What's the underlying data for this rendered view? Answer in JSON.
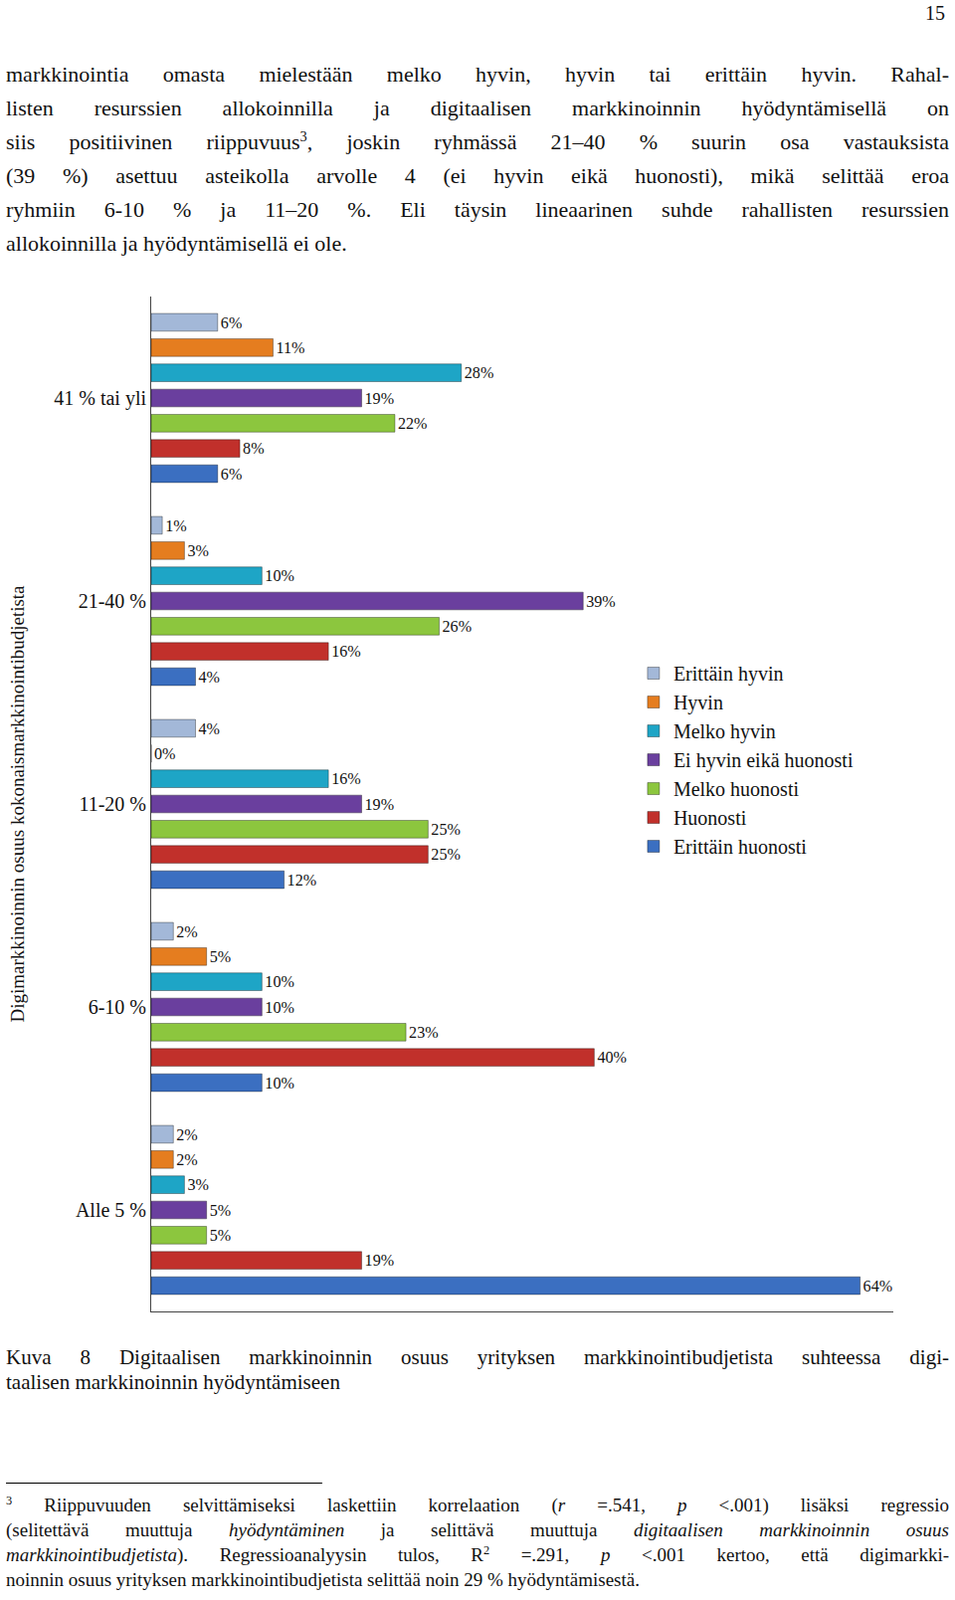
{
  "page": {
    "number": "15",
    "paragraph": [
      [
        "markkinointia omasta mielestään melko hyvin, hyvin tai erittäin hyvin. Rahal-"
      ],
      [
        "listen resurssien allokoinnilla ja digitaalisen markkinoinnin hyödyntämisellä on"
      ],
      [
        "siis positiivinen riippuvuus",
        {
          "sup": "3"
        },
        ", joskin ryhmässä 21–40 % suurin osa vastauksista"
      ],
      [
        "(39 %) asettuu asteikolla arvolle 4 (ei hyvin eikä huonosti), mikä selittää eroa"
      ],
      [
        "ryhmiin 6-10 % ja 11–20 %. Eli täysin lineaarinen suhde rahallisten resurssien"
      ],
      [
        "allokoinnilla ja hyödyntämisellä ei ole."
      ]
    ],
    "caption": [
      [
        "Kuva 8 Digitaalisen markkinoinnin osuus yrityksen markkinointibudjetista suhteessa digi-"
      ],
      [
        "taalisen markkinoinnin hyödyntämiseen"
      ]
    ],
    "footnote": [
      [
        {
          "sup": "3"
        },
        " Riippuvuuden selvittämiseksi laskettiin korrelaation (",
        {
          "i": "r"
        },
        " =.541, ",
        {
          "i": "p"
        },
        " <.001) lisäksi regressio"
      ],
      [
        "(selitettävä muuttuja ",
        {
          "i": "hyödyntäminen"
        },
        " ja selittävä muuttuja ",
        {
          "i": "digitaalisen markkinoinnin osuus"
        }
      ],
      [
        {
          "i": "markkinointibudjetista"
        },
        "). Regressioanalyysin tulos, R",
        {
          "sup": "2"
        },
        " =.291, ",
        {
          "i": "p"
        },
        " <.001 kertoo, että digimarkki-"
      ],
      [
        "noinnin osuus yrityksen markkinointibudjetista selittää noin 29 % hyödyntämisestä."
      ]
    ]
  },
  "chart_data": {
    "type": "bar",
    "orientation": "horizontal",
    "ylabel": "Digimarkkinoinnin osuus kokonaismarkkinointibudjetista",
    "categories": [
      "41 % tai yli",
      "21-40 %",
      "11-20 %",
      "6-10 %",
      "Alle 5 %"
    ],
    "xlim": [
      0,
      67
    ],
    "tick_labels": "y",
    "grid": false,
    "legend": "right",
    "data_labels": true,
    "series": [
      {
        "name": "Erittäin hyvin",
        "color": "#a3b8d8",
        "values": [
          6,
          1,
          4,
          2,
          2
        ],
        "value_labels": [
          "6%",
          "1%",
          "4%",
          "2%",
          "2%"
        ]
      },
      {
        "name": "Hyvin",
        "color": "#e57d1f",
        "values": [
          11,
          3,
          0,
          5,
          2
        ],
        "value_labels": [
          "11%",
          "3%",
          "0%",
          "5%",
          "2%"
        ]
      },
      {
        "name": "Melko hyvin",
        "color": "#1ea5c6",
        "values": [
          28,
          10,
          16,
          10,
          3
        ],
        "value_labels": [
          "28%",
          "10%",
          "16%",
          "10%",
          "3%"
        ]
      },
      {
        "name": "Ei hyvin eikä huonosti",
        "color": "#6a3f9e",
        "values": [
          19,
          39,
          19,
          10,
          5
        ],
        "value_labels": [
          "19%",
          "39%",
          "19%",
          "10%",
          "5%"
        ]
      },
      {
        "name": "Melko huonosti",
        "color": "#8cc63e",
        "values": [
          22,
          26,
          25,
          23,
          5
        ],
        "value_labels": [
          "22%",
          "26%",
          "25%",
          "23%",
          "5%"
        ]
      },
      {
        "name": "Huonosti",
        "color": "#c1302b",
        "values": [
          8,
          16,
          25,
          40,
          19
        ],
        "value_labels": [
          "8%",
          "16%",
          "25%",
          "40%",
          "19%"
        ]
      },
      {
        "name": "Erittäin huonosti",
        "color": "#3b6fc1",
        "values": [
          6,
          4,
          12,
          10,
          64
        ],
        "value_labels": [
          "6%",
          "4%",
          "12%",
          "10%",
          "64%"
        ]
      }
    ]
  }
}
